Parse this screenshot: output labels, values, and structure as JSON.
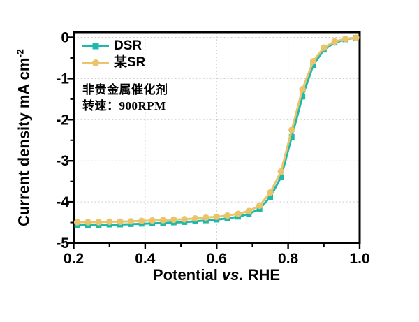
{
  "figure": {
    "background": "#ffffff",
    "frame_color": "#000000",
    "grid": {
      "color": "#c9c9c9",
      "style": "dashed"
    },
    "x_axis": {
      "title_pre": "Potential ",
      "title_italic": "vs",
      "title_post": ". RHE",
      "tick_labels": [
        "0.2",
        "0.4",
        "0.6",
        "0.8",
        "1.0"
      ],
      "tick_values": [
        0.2,
        0.4,
        0.6,
        0.8,
        1.0
      ],
      "minor_tick_values": [
        0.3,
        0.5,
        0.7,
        0.9
      ]
    },
    "y_axis": {
      "title_main": "Current density mA cm",
      "title_sup": "-2",
      "tick_labels": [
        "0",
        "-1",
        "-2",
        "-3",
        "-4",
        "-5"
      ],
      "tick_values": [
        0,
        -1,
        -2,
        -3,
        -4,
        -5
      ],
      "minor_tick_values": [
        -0.5,
        -1.5,
        -2.5,
        -3.5,
        -4.5
      ]
    },
    "legend": {
      "items": [
        {
          "label": "DSR",
          "color": "#1eb9ab",
          "marker": "square"
        },
        {
          "label": "某SR",
          "color": "#e9c46a",
          "marker": "circle"
        }
      ]
    },
    "annotation": {
      "line1": "非贵金属催化剂",
      "line2": "转速：900RPM"
    }
  },
  "chart_data": {
    "type": "line",
    "title": "",
    "xlabel": "Potential vs. RHE",
    "ylabel": "Current density mA cm⁻²",
    "xlim": [
      0.2,
      1.0
    ],
    "ylim": [
      -5,
      0.13
    ],
    "grid": "dashed major gridlines, box frame, outward ticks",
    "legend_position": "top-left",
    "x": [
      0.21,
      0.24,
      0.27,
      0.3,
      0.33,
      0.36,
      0.39,
      0.42,
      0.45,
      0.48,
      0.51,
      0.54,
      0.57,
      0.6,
      0.63,
      0.66,
      0.69,
      0.72,
      0.75,
      0.78,
      0.81,
      0.84,
      0.87,
      0.9,
      0.93,
      0.96,
      0.99
    ],
    "series": [
      {
        "name": "DSR",
        "color": "#1eb9ab",
        "marker": "square",
        "values": [
          -4.56,
          -4.56,
          -4.56,
          -4.55,
          -4.55,
          -4.54,
          -4.53,
          -4.52,
          -4.51,
          -4.5,
          -4.49,
          -4.47,
          -4.45,
          -4.43,
          -4.4,
          -4.36,
          -4.29,
          -4.17,
          -3.88,
          -3.4,
          -2.42,
          -1.44,
          -0.68,
          -0.3,
          -0.13,
          -0.05,
          -0.01
        ]
      },
      {
        "name": "某SR",
        "color": "#e9c46a",
        "marker": "circle",
        "values": [
          -4.49,
          -4.49,
          -4.49,
          -4.48,
          -4.48,
          -4.47,
          -4.46,
          -4.45,
          -4.44,
          -4.43,
          -4.42,
          -4.4,
          -4.38,
          -4.36,
          -4.33,
          -4.29,
          -4.22,
          -4.09,
          -3.77,
          -3.26,
          -2.25,
          -1.26,
          -0.58,
          -0.25,
          -0.1,
          -0.04,
          -0.01
        ]
      }
    ]
  }
}
